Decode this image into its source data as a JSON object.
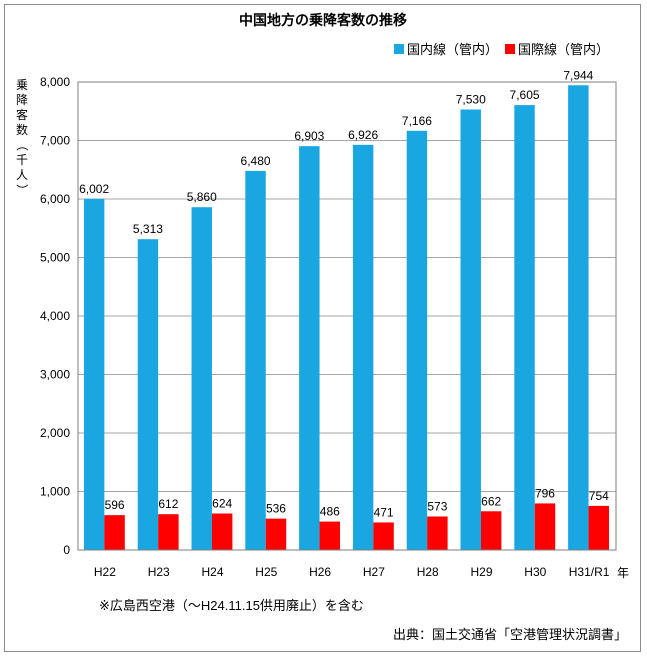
{
  "chart_data": {
    "type": "bar",
    "title": "中国地方の乗降客数の推移",
    "ylabel": "乗降客数（千人）",
    "xlabel": "年",
    "ylim": [
      0,
      8000
    ],
    "yticks": [
      "0",
      "1,000",
      "2,000",
      "3,000",
      "4,000",
      "5,000",
      "6,000",
      "7,000",
      "8,000"
    ],
    "ytick_values": [
      0,
      1000,
      2000,
      3000,
      4000,
      5000,
      6000,
      7000,
      8000
    ],
    "categories": [
      "H22",
      "H23",
      "H24",
      "H25",
      "H26",
      "H27",
      "H28",
      "H29",
      "H30",
      "H31/R1"
    ],
    "series": [
      {
        "name": "国内線（管内）",
        "color": "#1AA7E1",
        "values": [
          6002,
          5313,
          5860,
          6480,
          6903,
          6926,
          7166,
          7530,
          7605,
          7944
        ],
        "labels": [
          "6,002",
          "5,313",
          "5,860",
          "6,480",
          "6,903",
          "6,926",
          "7,166",
          "7,530",
          "7,605",
          "7,944"
        ]
      },
      {
        "name": "国際線（管内）",
        "color": "#FF0000",
        "values": [
          596,
          612,
          624,
          536,
          486,
          471,
          573,
          662,
          796,
          754
        ],
        "labels": [
          "596",
          "612",
          "624",
          "536",
          "486",
          "471",
          "573",
          "662",
          "796",
          "754"
        ]
      }
    ],
    "grid": true,
    "legend": "top-right",
    "notes": {
      "footnote": "※広島西空港（～H24.11.15供用廃止）を含む",
      "source": "出典：国土交通省「空港管理状況調書」"
    }
  }
}
